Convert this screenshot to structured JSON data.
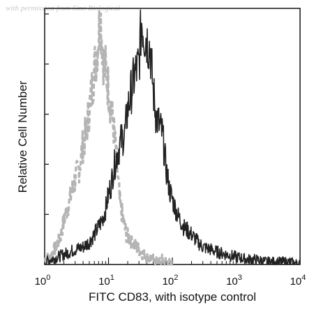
{
  "watermark": "with permission from Sino Biological",
  "chart_data": {
    "type": "histogram",
    "title": "",
    "xlabel": "FITC CD83, with isotype control",
    "ylabel": "Relative Cell Number",
    "x_scale": "log",
    "xlim": [
      1,
      10000
    ],
    "ylim": [
      0,
      100
    ],
    "grid": false,
    "legend": "none",
    "x_ticks": [
      {
        "base": "10",
        "exp": "0"
      },
      {
        "base": "10",
        "exp": "1"
      },
      {
        "base": "10",
        "exp": "2"
      },
      {
        "base": "10",
        "exp": "3"
      },
      {
        "base": "10",
        "exp": "4"
      }
    ],
    "series": [
      {
        "style": "dashed",
        "color": "#b4b4b4",
        "x": [
          1.0,
          1.2,
          1.5,
          1.8,
          2.1,
          2.5,
          3.0,
          3.5,
          4.0,
          4.5,
          5.0,
          5.5,
          6.0,
          6.5,
          7.0,
          7.5,
          8.0,
          8.5,
          9.0,
          9.5,
          10.0,
          11.0,
          12.0,
          13.0,
          14.0,
          15.0,
          17.0,
          19.0,
          22.0,
          25.0,
          30.0,
          35.0,
          40.0,
          50.0,
          60.0,
          70.0,
          80.0,
          100.0
        ],
        "values": [
          2,
          3,
          7,
          12,
          20,
          26,
          34,
          39,
          48,
          53,
          62,
          70,
          78,
          84,
          92,
          99,
          88,
          80,
          78,
          74,
          70,
          62,
          55,
          45,
          35,
          25,
          18,
          12,
          10,
          8,
          6,
          4,
          3,
          2,
          1,
          2,
          1,
          0
        ]
      },
      {
        "style": "solid",
        "color": "#222222",
        "x": [
          1.0,
          2.0,
          3.0,
          4.0,
          5.0,
          6.0,
          7.0,
          8.0,
          9.0,
          10.0,
          11.0,
          12.0,
          14.0,
          16.0,
          18.0,
          20.0,
          23.0,
          26.0,
          30.0,
          33.0,
          36.0,
          40.0,
          45.0,
          50.0,
          55.0,
          60.0,
          70.0,
          80.0,
          90.0,
          100.0,
          120.0,
          150.0,
          200.0,
          250.0,
          300.0,
          400.0,
          500.0,
          700.0,
          1000.0,
          1500.0,
          2000.0,
          3000.0,
          5000.0,
          7000.0,
          10000.0
        ],
        "values": [
          1,
          4,
          6,
          7,
          9,
          12,
          15,
          18,
          22,
          28,
          32,
          38,
          45,
          50,
          52,
          62,
          70,
          76,
          80,
          98,
          92,
          90,
          86,
          70,
          60,
          57,
          52,
          38,
          30,
          26,
          20,
          15,
          12,
          9,
          7,
          6,
          5,
          4,
          3,
          2,
          2,
          1,
          1,
          1,
          0
        ]
      }
    ]
  }
}
